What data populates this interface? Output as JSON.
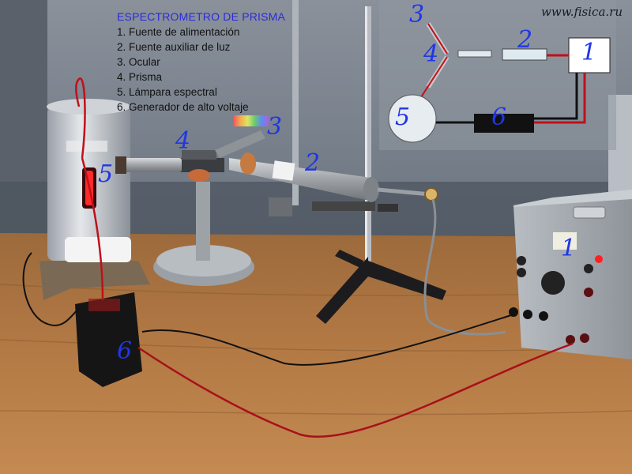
{
  "legend": {
    "title": "ESPECTROMETRO DE PRISMA",
    "items": [
      "1. Fuente de alimentación",
      "2. Fuente auxiliar de luz",
      "3. Ocular",
      "4. Prisma",
      "5. Lámpara espectral",
      "6. Generador de alto voltaje"
    ]
  },
  "watermark": "www.fisica.ru",
  "schematic_labels": [
    "1",
    "2",
    "3",
    "4",
    "5",
    "6"
  ],
  "photo_labels": [
    "1",
    "2",
    "3",
    "4",
    "5",
    "6"
  ],
  "colors": {
    "label_blue": "#2036e6",
    "legend_title": "#2a2adc",
    "wire_red": "#c0101a",
    "wire_black": "#111111",
    "lamp_glow": "#ff2a2a"
  }
}
